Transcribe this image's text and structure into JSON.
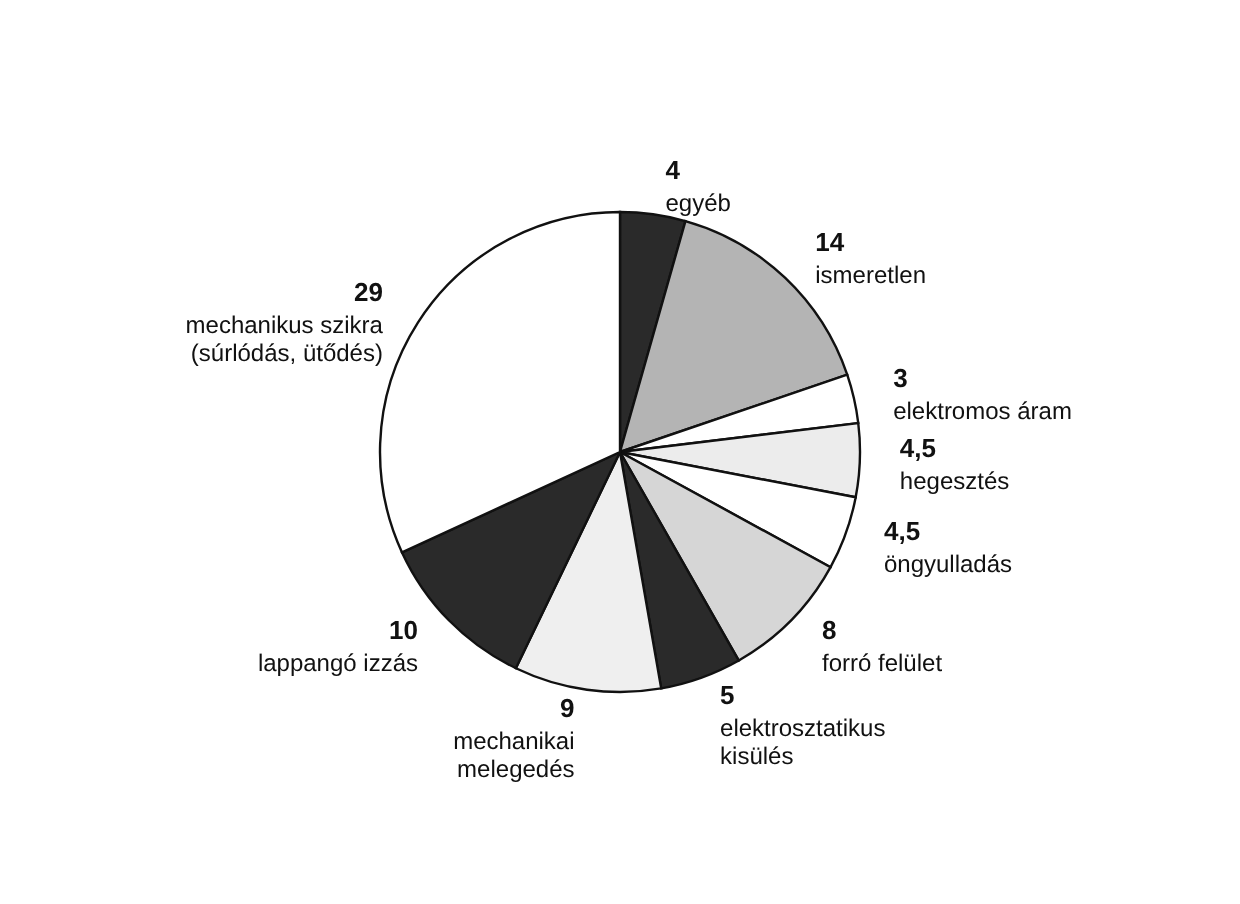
{
  "chart_data": {
    "type": "pie",
    "categories": [
      "egyéb",
      "ismeretlen",
      "elektromos áram",
      "hegesztés",
      "öngyulladás",
      "forró felület",
      "elektrosztatikus kisülés",
      "mechanikai melegedés",
      "lappangó izzás",
      "mechanikus szikra (súrlódás, ütődés)"
    ],
    "values": [
      4,
      14,
      3,
      4.5,
      4.5,
      8,
      5,
      9,
      10,
      29
    ],
    "colors": [
      "#2a2a2a",
      "#b4b4b4",
      "#ffffff",
      "#ececec",
      "#ffffff",
      "#d6d6d6",
      "#2a2a2a",
      "#efefef",
      "#2a2a2a",
      "#ffffff"
    ],
    "value_labels": [
      "4",
      "14",
      "3",
      "4,5",
      "4,5",
      "8",
      "5",
      "9",
      "10",
      "29"
    ]
  }
}
